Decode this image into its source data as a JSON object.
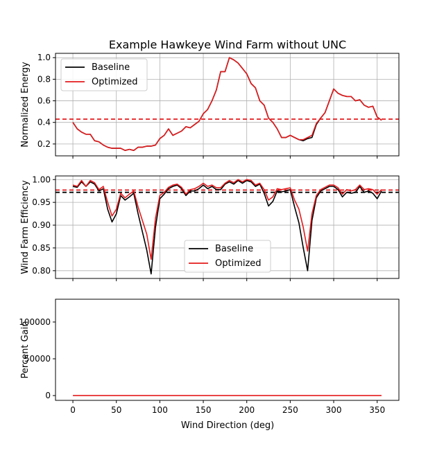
{
  "title": "Example Hawkeye Wind Farm without UNC",
  "xlabel": "Wind Direction (deg)",
  "colors": {
    "baseline": "#000000",
    "optimized": "#e41a1c",
    "grid": "#b0b0b0"
  },
  "chart_data": [
    {
      "type": "line",
      "ylabel": "Normalized Energy",
      "xlim": [
        -20,
        375
      ],
      "ylim": [
        0.09,
        1.04
      ],
      "xticks": [
        0,
        50,
        100,
        150,
        200,
        250,
        300,
        350
      ],
      "yticks": [
        0.2,
        0.4,
        0.6,
        0.8,
        1.0
      ],
      "ytick_labels": [
        "0.2",
        "0.4",
        "0.6",
        "0.8",
        "1.0"
      ],
      "grid": true,
      "legend_position": "top-left",
      "hline": {
        "y": 0.43,
        "color": "optimized",
        "style": "dashed"
      },
      "x": [
        0,
        5,
        10,
        15,
        20,
        25,
        30,
        35,
        40,
        45,
        50,
        55,
        60,
        65,
        70,
        75,
        80,
        85,
        90,
        95,
        100,
        105,
        110,
        115,
        120,
        125,
        130,
        135,
        140,
        145,
        150,
        155,
        160,
        165,
        170,
        175,
        180,
        185,
        190,
        195,
        200,
        205,
        210,
        215,
        220,
        225,
        230,
        235,
        240,
        245,
        250,
        255,
        260,
        265,
        270,
        275,
        280,
        285,
        290,
        295,
        300,
        305,
        310,
        315,
        320,
        325,
        330,
        335,
        340,
        345,
        350,
        355
      ],
      "series": [
        {
          "name": "Baseline",
          "color": "baseline",
          "values": [
            0.4,
            0.34,
            0.31,
            0.29,
            0.29,
            0.23,
            0.22,
            0.19,
            0.17,
            0.16,
            0.16,
            0.16,
            0.14,
            0.15,
            0.14,
            0.17,
            0.17,
            0.18,
            0.18,
            0.19,
            0.25,
            0.28,
            0.34,
            0.28,
            0.3,
            0.32,
            0.36,
            0.35,
            0.38,
            0.41,
            0.48,
            0.52,
            0.6,
            0.7,
            0.87,
            0.87,
            1.0,
            0.98,
            0.95,
            0.9,
            0.85,
            0.76,
            0.72,
            0.6,
            0.56,
            0.44,
            0.4,
            0.34,
            0.26,
            0.26,
            0.28,
            0.26,
            0.24,
            0.23,
            0.25,
            0.26,
            0.38,
            0.44,
            0.49,
            0.6,
            0.71,
            0.67,
            0.65,
            0.64,
            0.64,
            0.6,
            0.61,
            0.56,
            0.54,
            0.55,
            0.45,
            0.42
          ]
        },
        {
          "name": "Optimized",
          "color": "optimized",
          "values": [
            0.4,
            0.34,
            0.31,
            0.29,
            0.29,
            0.23,
            0.22,
            0.19,
            0.17,
            0.16,
            0.16,
            0.16,
            0.14,
            0.15,
            0.14,
            0.17,
            0.17,
            0.18,
            0.18,
            0.19,
            0.25,
            0.28,
            0.34,
            0.28,
            0.3,
            0.32,
            0.36,
            0.35,
            0.38,
            0.41,
            0.48,
            0.52,
            0.6,
            0.7,
            0.87,
            0.87,
            1.0,
            0.98,
            0.95,
            0.9,
            0.85,
            0.76,
            0.72,
            0.6,
            0.56,
            0.44,
            0.4,
            0.34,
            0.26,
            0.26,
            0.28,
            0.26,
            0.24,
            0.24,
            0.26,
            0.28,
            0.39,
            0.44,
            0.49,
            0.6,
            0.71,
            0.67,
            0.65,
            0.64,
            0.64,
            0.6,
            0.61,
            0.56,
            0.54,
            0.55,
            0.45,
            0.42
          ]
        }
      ]
    },
    {
      "type": "line",
      "ylabel": "Wind Farm Efficiency",
      "xlim": [
        -20,
        375
      ],
      "ylim": [
        0.783,
        1.008
      ],
      "xticks": [
        0,
        50,
        100,
        150,
        200,
        250,
        300,
        350
      ],
      "yticks": [
        0.8,
        0.85,
        0.9,
        0.95,
        1.0
      ],
      "ytick_labels": [
        "0.80",
        "0.85",
        "0.90",
        "0.95",
        "1.00"
      ],
      "grid": true,
      "legend_position": "lower-center",
      "hlines": [
        {
          "y": 0.977,
          "color": "optimized",
          "style": "dashed"
        },
        {
          "y": 0.972,
          "color": "baseline",
          "style": "dashed"
        }
      ],
      "x": [
        0,
        5,
        10,
        15,
        20,
        25,
        30,
        35,
        40,
        45,
        50,
        55,
        60,
        65,
        70,
        75,
        80,
        85,
        90,
        95,
        100,
        105,
        110,
        115,
        120,
        125,
        130,
        135,
        140,
        145,
        150,
        155,
        160,
        165,
        170,
        175,
        180,
        185,
        190,
        195,
        200,
        205,
        210,
        215,
        220,
        225,
        230,
        235,
        240,
        245,
        250,
        255,
        260,
        265,
        270,
        275,
        280,
        285,
        290,
        295,
        300,
        305,
        310,
        315,
        320,
        325,
        330,
        335,
        340,
        345,
        350,
        355
      ],
      "series": [
        {
          "name": "Baseline",
          "color": "baseline",
          "values": [
            0.985,
            0.983,
            0.995,
            0.985,
            0.995,
            0.99,
            0.975,
            0.98,
            0.935,
            0.907,
            0.925,
            0.965,
            0.955,
            0.962,
            0.97,
            0.925,
            0.885,
            0.845,
            0.793,
            0.895,
            0.958,
            0.968,
            0.98,
            0.985,
            0.988,
            0.98,
            0.965,
            0.975,
            0.975,
            0.98,
            0.988,
            0.98,
            0.985,
            0.978,
            0.978,
            0.99,
            0.995,
            0.99,
            0.998,
            0.992,
            0.998,
            0.995,
            0.985,
            0.99,
            0.97,
            0.942,
            0.952,
            0.975,
            0.973,
            0.975,
            0.978,
            0.94,
            0.905,
            0.85,
            0.8,
            0.91,
            0.96,
            0.975,
            0.98,
            0.985,
            0.985,
            0.978,
            0.962,
            0.972,
            0.97,
            0.972,
            0.985,
            0.972,
            0.975,
            0.97,
            0.958,
            0.975
          ]
        },
        {
          "name": "Optimized",
          "color": "optimized",
          "values": [
            0.988,
            0.985,
            0.998,
            0.985,
            0.998,
            0.993,
            0.978,
            0.985,
            0.95,
            0.92,
            0.935,
            0.97,
            0.96,
            0.968,
            0.975,
            0.94,
            0.91,
            0.88,
            0.825,
            0.915,
            0.965,
            0.972,
            0.983,
            0.988,
            0.99,
            0.983,
            0.968,
            0.978,
            0.98,
            0.985,
            0.992,
            0.985,
            0.988,
            0.982,
            0.982,
            0.992,
            0.998,
            0.993,
            1.0,
            0.995,
            1.0,
            0.998,
            0.988,
            0.992,
            0.978,
            0.955,
            0.962,
            0.98,
            0.978,
            0.98,
            0.982,
            0.955,
            0.935,
            0.895,
            0.843,
            0.925,
            0.965,
            0.978,
            0.983,
            0.988,
            0.988,
            0.982,
            0.968,
            0.978,
            0.975,
            0.978,
            0.988,
            0.978,
            0.98,
            0.978,
            0.968,
            0.978
          ]
        }
      ]
    },
    {
      "type": "line",
      "ylabel": "Percent Gain",
      "xlim": [
        -20,
        375
      ],
      "ylim": [
        -6500,
        131000
      ],
      "xticks": [
        0,
        50,
        100,
        150,
        200,
        250,
        300,
        350
      ],
      "xtick_labels": [
        "0",
        "50",
        "100",
        "150",
        "200",
        "250",
        "300",
        "350"
      ],
      "yticks": [
        0,
        50000,
        100000
      ],
      "ytick_labels": [
        "0",
        "50000",
        "100000"
      ],
      "grid": false,
      "x": [
        0,
        355
      ],
      "series": [
        {
          "color": "optimized",
          "values": [
            0,
            0
          ]
        }
      ]
    }
  ]
}
